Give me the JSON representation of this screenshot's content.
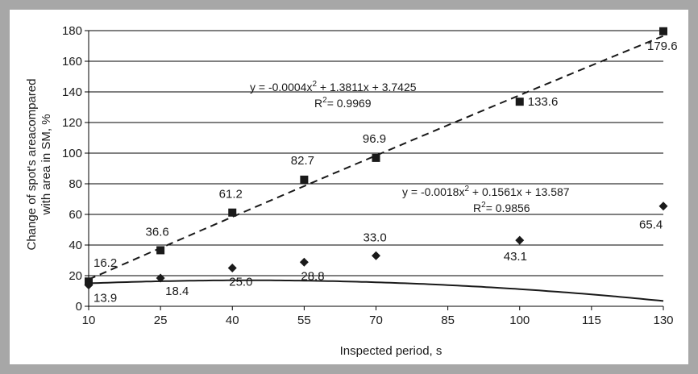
{
  "chart_data": {
    "type": "scatter",
    "xlabel": "Inspected period, s",
    "ylabel_lines": [
      "Change of spot's areacompared",
      "with area in SM, %"
    ],
    "xlim": [
      10,
      130
    ],
    "ylim": [
      0,
      180
    ],
    "x_ticks": [
      10,
      25,
      40,
      55,
      70,
      85,
      100,
      115,
      130
    ],
    "y_ticks": [
      0,
      20,
      40,
      60,
      80,
      100,
      120,
      140,
      160,
      180
    ],
    "grid": "horizontal",
    "series": [
      {
        "marker": "square",
        "line_style": "dashed",
        "x": [
          10,
          25,
          40,
          55,
          70,
          100,
          130
        ],
        "y": [
          16.2,
          36.6,
          61.2,
          82.7,
          96.9,
          133.6,
          179.6
        ],
        "labels": [
          "16.2",
          "36.6",
          "61.2",
          "82.7",
          "96.9",
          "133.6",
          "179.6"
        ],
        "fit": {
          "a": -0.0004,
          "b": 1.3811,
          "c": 3.7425
        },
        "equation": "y = -0.0004x",
        "equation_tail": " + 1.3811x + 3.7425",
        "r2": "= 0.9969"
      },
      {
        "marker": "diamond",
        "line_style": "solid",
        "x": [
          10,
          25,
          40,
          55,
          70,
          100,
          130
        ],
        "y": [
          13.9,
          18.4,
          25.0,
          28.8,
          33.0,
          43.1,
          65.4
        ],
        "labels": [
          "13.9",
          "18.4",
          "25.0",
          "28.8",
          "33.0",
          "43.1",
          "65.4"
        ],
        "fit": {
          "a": -0.0018,
          "b": 0.1561,
          "c": 13.587
        },
        "equation": "y = -0.0018x",
        "equation_tail": " + 0.1561x + 13.587",
        "r2": "= 0.9856"
      }
    ],
    "colors": {
      "marker": "#1a1a1a",
      "grid": "#000000",
      "background": "#ffffff",
      "frame": "#a7a7a7"
    }
  }
}
